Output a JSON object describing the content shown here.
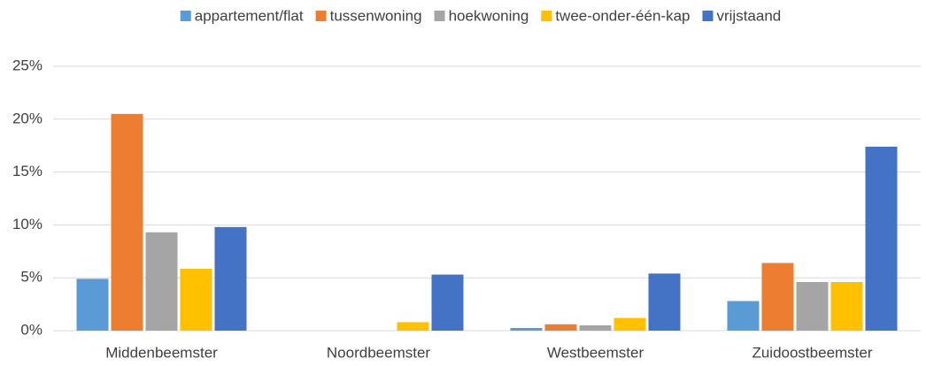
{
  "chart_data": {
    "type": "bar",
    "categories": [
      "Middenbeemster",
      "Noordbeemster",
      "Westbeemster",
      "Zuidoostbeemster"
    ],
    "series": [
      {
        "name": "appartement/flat",
        "color": "#5b9bd5",
        "values": [
          4.9,
          0,
          0.25,
          2.8
        ]
      },
      {
        "name": "tussenwoning",
        "color": "#ed7d31",
        "values": [
          20.5,
          0,
          0.6,
          6.4
        ]
      },
      {
        "name": "hoekwoning",
        "color": "#a5a5a5",
        "values": [
          9.3,
          0,
          0.5,
          4.6
        ]
      },
      {
        "name": "twee-onder-één-kap",
        "color": "#ffc000",
        "values": [
          5.85,
          0.8,
          1.2,
          4.6
        ]
      },
      {
        "name": "vrijstaand",
        "color": "#4472c4",
        "values": [
          9.8,
          5.3,
          5.4,
          17.4
        ]
      }
    ],
    "ylim": [
      0,
      25
    ],
    "yticks": [
      {
        "value": 0,
        "label": "0%"
      },
      {
        "value": 5,
        "label": "5%"
      },
      {
        "value": 10,
        "label": "10%"
      },
      {
        "value": 15,
        "label": "15%"
      },
      {
        "value": 20,
        "label": "20%"
      },
      {
        "value": 25,
        "label": "25%"
      }
    ],
    "grid": true,
    "legend": "top"
  }
}
